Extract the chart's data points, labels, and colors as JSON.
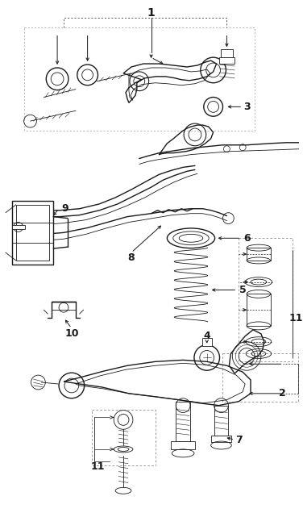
{
  "bg_color": "#ffffff",
  "line_color": "#1a1a1a",
  "fig_width": 3.76,
  "fig_height": 6.36,
  "dpi": 100
}
